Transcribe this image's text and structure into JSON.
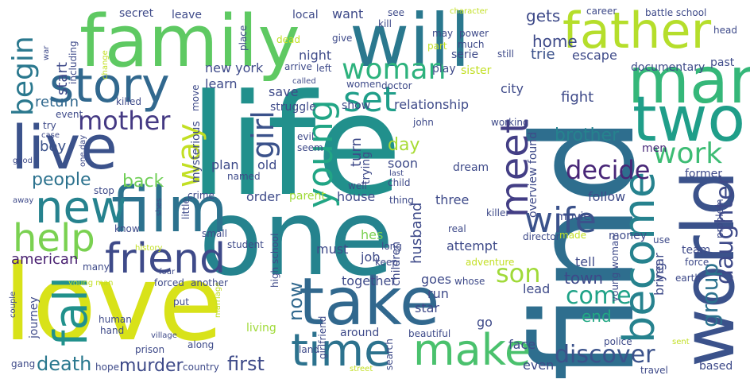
{
  "words": [
    {
      "text": "life",
      "color": "#21908c"
    },
    {
      "text": "find",
      "color": "#2e6e8e"
    },
    {
      "text": "love",
      "color": "#d8e219"
    },
    {
      "text": "one",
      "color": "#25838e"
    },
    {
      "text": "family",
      "color": "#5ec962"
    },
    {
      "text": "will",
      "color": "#2a788e"
    },
    {
      "text": "take",
      "color": "#31688e"
    },
    {
      "text": "world",
      "color": "#3b528b"
    },
    {
      "text": "father",
      "color": "#b5de2b"
    },
    {
      "text": "man",
      "color": "#35b779"
    },
    {
      "text": "film",
      "color": "#2c728e"
    },
    {
      "text": "two",
      "color": "#1f9e89"
    },
    {
      "text": "live",
      "color": "#3b528b"
    },
    {
      "text": "story",
      "color": "#31688e"
    },
    {
      "text": "new",
      "color": "#26828e"
    },
    {
      "text": "time",
      "color": "#2c728e"
    },
    {
      "text": "make",
      "color": "#4ac16d"
    },
    {
      "text": "become",
      "color": "#26828e"
    },
    {
      "text": "friend",
      "color": "#3e4a89"
    },
    {
      "text": "help",
      "color": "#7ad151"
    },
    {
      "text": "fall",
      "color": "#21918c"
    },
    {
      "text": "meet",
      "color": "#433e85"
    },
    {
      "text": "wife",
      "color": "#3b528b"
    },
    {
      "text": "young",
      "color": "#21a585"
    },
    {
      "text": "woman",
      "color": "#2db27d"
    },
    {
      "text": "set",
      "color": "#1f9e89"
    },
    {
      "text": "way",
      "color": "#c2df23"
    },
    {
      "text": "girl",
      "color": "#3b528b"
    },
    {
      "text": "begin",
      "color": "#2a788e"
    },
    {
      "text": "mother",
      "color": "#443983"
    },
    {
      "text": "work",
      "color": "#3dbc74"
    },
    {
      "text": "decide",
      "color": "#482677"
    },
    {
      "text": "daughter",
      "color": "#3e4a89"
    },
    {
      "text": "son",
      "color": "#a0da39"
    },
    {
      "text": "come",
      "color": "#1fa287"
    },
    {
      "text": "discover",
      "color": "#3b528b"
    },
    {
      "text": "group",
      "color": "#2c728e"
    },
    {
      "text": "death",
      "color": "#2a788e"
    },
    {
      "text": "murder",
      "color": "#3e4a89"
    },
    {
      "text": "first",
      "color": "#3e4a89"
    },
    {
      "text": "people",
      "color": "#2c728e"
    },
    {
      "text": "back",
      "color": "#70cf57"
    },
    {
      "text": "day",
      "color": "#a8db34"
    },
    {
      "text": "brother",
      "color": "#26828e"
    },
    {
      "text": "american",
      "color": "#481f70"
    },
    {
      "text": "now",
      "color": "#31688e"
    },
    {
      "text": "town",
      "color": "#3e4a89"
    },
    {
      "text": "end",
      "color": "#22a884"
    },
    {
      "text": "return",
      "color": "#31688e"
    },
    {
      "text": "boy",
      "color": "#3b528b"
    },
    {
      "text": "start",
      "color": "#3e4a89"
    },
    {
      "text": "home",
      "color": "#3e4a89"
    },
    {
      "text": "gets",
      "color": "#3e4a89"
    },
    {
      "text": "trie",
      "color": "#3b528b"
    },
    {
      "text": "escape",
      "color": "#3e4a89"
    },
    {
      "text": "turn",
      "color": "#3e4a89"
    },
    {
      "text": "fight",
      "color": "#3e4a89"
    },
    {
      "text": "husband",
      "color": "#3e4a89"
    },
    {
      "text": "men",
      "color": "#482878"
    },
    {
      "text": "follow",
      "color": "#3e4a89"
    },
    {
      "text": "team",
      "color": "#3e4a89"
    },
    {
      "text": "bring",
      "color": "#3e4a89"
    },
    {
      "text": "year",
      "color": "#3e4a89"
    },
    {
      "text": "tell",
      "color": "#3e4a89"
    },
    {
      "text": "lead",
      "color": "#3e4a89"
    },
    {
      "text": "goes",
      "color": "#3e4a89"
    },
    {
      "text": "go",
      "color": "#3e4a89"
    },
    {
      "text": "face",
      "color": "#3e4a89"
    },
    {
      "text": "even",
      "color": "#3e4a89"
    },
    {
      "text": "based",
      "color": "#3e4a89"
    },
    {
      "text": "hes",
      "color": "#7ad151"
    },
    {
      "text": "must",
      "color": "#3e4a89"
    },
    {
      "text": "job",
      "color": "#3e4a89"
    },
    {
      "text": "attempt",
      "color": "#3e4a89"
    },
    {
      "text": "together",
      "color": "#3e4a89"
    },
    {
      "text": "run",
      "color": "#3e4a89"
    },
    {
      "text": "star",
      "color": "#3e4a89"
    },
    {
      "text": "children",
      "color": "#3e4a89"
    },
    {
      "text": "house",
      "color": "#3e4a89"
    },
    {
      "text": "three",
      "color": "#3e4a89"
    },
    {
      "text": "parent",
      "color": "#a0da39"
    },
    {
      "text": "order",
      "color": "#3e4a89"
    },
    {
      "text": "plan",
      "color": "#3e4a89"
    },
    {
      "text": "old",
      "color": "#3e4a89"
    },
    {
      "text": "named",
      "color": "#3e4a89"
    },
    {
      "text": "mysterious",
      "color": "#3e4a89"
    },
    {
      "text": "struggle",
      "color": "#3e4a89"
    },
    {
      "text": "save",
      "color": "#3e4a89"
    },
    {
      "text": "learn",
      "color": "#3e4a89"
    },
    {
      "text": "new york",
      "color": "#3e4a89"
    },
    {
      "text": "night",
      "color": "#3e4a89"
    },
    {
      "text": "want",
      "color": "#3e4a89"
    },
    {
      "text": "local",
      "color": "#3e4a89"
    },
    {
      "text": "leave",
      "color": "#3e4a89"
    },
    {
      "text": "secret",
      "color": "#3e4a89"
    },
    {
      "text": "see",
      "color": "#3e4a89"
    },
    {
      "text": "kill",
      "color": "#3e4a89"
    },
    {
      "text": "dead",
      "color": "#c2df23"
    },
    {
      "text": "give",
      "color": "#3e4a89"
    },
    {
      "text": "may",
      "color": "#3e4a89"
    },
    {
      "text": "power",
      "color": "#3e4a89"
    },
    {
      "text": "part",
      "color": "#c2df23"
    },
    {
      "text": "much",
      "color": "#3e4a89"
    },
    {
      "text": "still",
      "color": "#3e4a89"
    },
    {
      "text": "career",
      "color": "#3e4a89"
    },
    {
      "text": "battle school",
      "color": "#3e4a89"
    },
    {
      "text": "head",
      "color": "#3e4a89"
    },
    {
      "text": "past",
      "color": "#3e4a89"
    },
    {
      "text": "documentary",
      "color": "#3e4a89"
    },
    {
      "text": "city",
      "color": "#3e4a89"
    },
    {
      "text": "sister",
      "color": "#c2df23"
    },
    {
      "text": "serie",
      "color": "#3e4a89"
    },
    {
      "text": "play",
      "color": "#3e4a89"
    },
    {
      "text": "women",
      "color": "#3e4a89"
    },
    {
      "text": "doctor",
      "color": "#3e4a89"
    },
    {
      "text": "left",
      "color": "#3e4a89"
    },
    {
      "text": "arrive",
      "color": "#3e4a89"
    },
    {
      "text": "relationship",
      "color": "#3e4a89"
    },
    {
      "text": "show",
      "color": "#3e4a89"
    },
    {
      "text": "trying",
      "color": "#3e4a89"
    },
    {
      "text": "soon",
      "color": "#3e4a89"
    },
    {
      "text": "dream",
      "color": "#3e4a89"
    },
    {
      "text": "overview found",
      "color": "#3e4a89"
    },
    {
      "text": "well",
      "color": "#3e4a89"
    },
    {
      "text": "child",
      "color": "#3e4a89"
    },
    {
      "text": "last",
      "color": "#3e4a89"
    },
    {
      "text": "thing",
      "color": "#3e4a89"
    },
    {
      "text": "killer",
      "color": "#3e4a89"
    },
    {
      "text": "real",
      "color": "#3e4a89"
    },
    {
      "text": "long",
      "color": "#3e4a89"
    },
    {
      "text": "keep",
      "color": "#3e4a89"
    },
    {
      "text": "whose",
      "color": "#3e4a89"
    },
    {
      "text": "adventure",
      "color": "#c2df23"
    },
    {
      "text": "director",
      "color": "#3e4a89"
    },
    {
      "text": "movie",
      "color": "#3e4a89"
    },
    {
      "text": "made",
      "color": "#c2df23"
    },
    {
      "text": "money",
      "color": "#3e4a89"
    },
    {
      "text": "use",
      "color": "#3e4a89"
    },
    {
      "text": "force",
      "color": "#3e4a89"
    },
    {
      "text": "earth",
      "color": "#3e4a89"
    },
    {
      "text": "problem",
      "color": "#3e4a89"
    },
    {
      "text": "sent",
      "color": "#c2df23"
    },
    {
      "text": "travel",
      "color": "#3e4a89"
    },
    {
      "text": "police",
      "color": "#3e4a89"
    },
    {
      "text": "young woman",
      "color": "#3e4a89"
    },
    {
      "text": "former",
      "color": "#3e4a89"
    },
    {
      "text": "working",
      "color": "#3e4a89"
    },
    {
      "text": "john",
      "color": "#3e4a89"
    },
    {
      "text": "seem",
      "color": "#3e4a89"
    },
    {
      "text": "evil",
      "color": "#3e4a89"
    },
    {
      "text": "called",
      "color": "#3e4a89"
    },
    {
      "text": "move",
      "color": "#3e4a89"
    },
    {
      "text": "crime",
      "color": "#3e4a89"
    },
    {
      "text": "little",
      "color": "#3e4a89"
    },
    {
      "text": "small",
      "color": "#3e4a89"
    },
    {
      "text": "student",
      "color": "#3e4a89"
    },
    {
      "text": "high school",
      "color": "#3e4a89"
    },
    {
      "text": "girlfriend",
      "color": "#3e4a89"
    },
    {
      "text": "around",
      "color": "#3e4a89"
    },
    {
      "text": "beautiful",
      "color": "#3e4a89"
    },
    {
      "text": "search",
      "color": "#3e4a89"
    },
    {
      "text": "land",
      "color": "#3e4a89"
    },
    {
      "text": "street",
      "color": "#c2df23"
    },
    {
      "text": "living",
      "color": "#a0da39"
    },
    {
      "text": "along",
      "color": "#3e4a89"
    },
    {
      "text": "prison",
      "color": "#3e4a89"
    },
    {
      "text": "country",
      "color": "#3e4a89"
    },
    {
      "text": "hope",
      "color": "#3e4a89"
    },
    {
      "text": "gang",
      "color": "#3e4a89"
    },
    {
      "text": "village",
      "color": "#3e4a89"
    },
    {
      "text": "hand",
      "color": "#3e4a89"
    },
    {
      "text": "human",
      "color": "#3e4a89"
    },
    {
      "text": "put",
      "color": "#3e4a89"
    },
    {
      "text": "marriage",
      "color": "#c2df23"
    },
    {
      "text": "forced",
      "color": "#3e4a89"
    },
    {
      "text": "another",
      "color": "#3e4a89"
    },
    {
      "text": "four",
      "color": "#3e4a89"
    },
    {
      "text": "history",
      "color": "#c2df23"
    },
    {
      "text": "many",
      "color": "#3e4a89"
    },
    {
      "text": "young man",
      "color": "#c2df23"
    },
    {
      "text": "journey",
      "color": "#3e4a89"
    },
    {
      "text": "couple",
      "color": "#3e4a89"
    },
    {
      "text": "know",
      "color": "#3e4a89"
    },
    {
      "text": "shes",
      "color": "#3e4a89"
    },
    {
      "text": "stop",
      "color": "#3e4a89"
    },
    {
      "text": "one day",
      "color": "#3e4a89"
    },
    {
      "text": "case",
      "color": "#3e4a89"
    },
    {
      "text": "try",
      "color": "#3e4a89"
    },
    {
      "text": "event",
      "color": "#3e4a89"
    },
    {
      "text": "good",
      "color": "#3e4a89"
    },
    {
      "text": "away",
      "color": "#3e4a89"
    },
    {
      "text": "killed",
      "color": "#3e4a89"
    },
    {
      "text": "including",
      "color": "#3e4a89"
    },
    {
      "text": "war",
      "color": "#3e4a89"
    },
    {
      "text": "change",
      "color": "#c2df23"
    },
    {
      "text": "place",
      "color": "#3e4a89"
    },
    {
      "text": "character",
      "color": "#c2df23"
    }
  ]
}
